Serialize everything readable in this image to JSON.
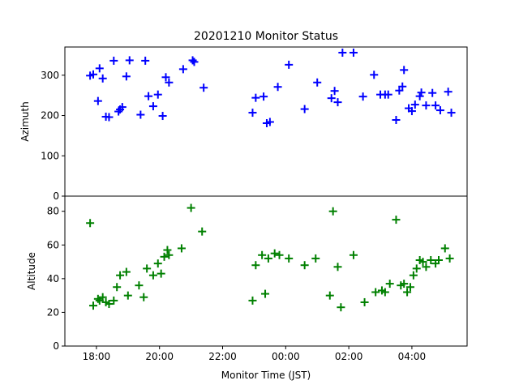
{
  "chart_data": {
    "title": "20201210 Monitor Status",
    "xlabel": "Monitor Time (JST)",
    "x_ticks": [
      "18:00",
      "20:00",
      "22:00",
      "00:00",
      "02:00",
      "04:00"
    ],
    "x_tick_hours": [
      18,
      20,
      22,
      24,
      26,
      28
    ],
    "xlim_hours": [
      17.0,
      29.75
    ],
    "marker": "plus",
    "panels": [
      {
        "type": "scatter",
        "ylabel": "Azimuth",
        "ylim": [
          0,
          370
        ],
        "y_ticks": [
          0,
          100,
          200,
          300
        ],
        "color": "#0000ff",
        "points": [
          [
            17.8,
            299
          ],
          [
            17.9,
            302
          ],
          [
            18.05,
            236
          ],
          [
            18.1,
            317
          ],
          [
            18.2,
            292
          ],
          [
            18.3,
            197
          ],
          [
            18.4,
            196
          ],
          [
            18.55,
            336
          ],
          [
            18.7,
            210
          ],
          [
            18.75,
            215
          ],
          [
            18.82,
            221
          ],
          [
            18.95,
            297
          ],
          [
            19.05,
            337
          ],
          [
            19.4,
            202
          ],
          [
            19.55,
            336
          ],
          [
            19.65,
            248
          ],
          [
            19.8,
            223
          ],
          [
            19.95,
            252
          ],
          [
            20.1,
            199
          ],
          [
            20.2,
            295
          ],
          [
            20.3,
            282
          ],
          [
            20.75,
            315
          ],
          [
            21.05,
            337
          ],
          [
            21.1,
            333
          ],
          [
            21.4,
            269
          ],
          [
            22.95,
            207
          ],
          [
            23.05,
            244
          ],
          [
            23.3,
            247
          ],
          [
            23.4,
            181
          ],
          [
            23.5,
            184
          ],
          [
            23.75,
            271
          ],
          [
            24.1,
            326
          ],
          [
            24.6,
            216
          ],
          [
            25.0,
            282
          ],
          [
            25.45,
            243
          ],
          [
            25.55,
            261
          ],
          [
            25.65,
            233
          ],
          [
            25.8,
            356
          ],
          [
            26.15,
            356
          ],
          [
            26.45,
            247
          ],
          [
            26.8,
            301
          ],
          [
            27.0,
            252
          ],
          [
            27.15,
            252
          ],
          [
            27.25,
            252
          ],
          [
            27.5,
            189
          ],
          [
            27.6,
            262
          ],
          [
            27.7,
            272
          ],
          [
            27.75,
            313
          ],
          [
            27.9,
            218
          ],
          [
            28.0,
            211
          ],
          [
            28.1,
            227
          ],
          [
            28.3,
            257
          ],
          [
            28.25,
            248
          ],
          [
            28.45,
            225
          ],
          [
            28.65,
            256
          ],
          [
            28.75,
            225
          ],
          [
            28.9,
            213
          ],
          [
            29.15,
            259
          ],
          [
            29.25,
            207
          ]
        ]
      },
      {
        "type": "scatter",
        "ylabel": "Altitude",
        "ylim": [
          0,
          89
        ],
        "y_ticks": [
          0,
          20,
          40,
          60,
          80
        ],
        "color": "#008000",
        "points": [
          [
            17.8,
            73
          ],
          [
            17.9,
            24
          ],
          [
            18.05,
            28
          ],
          [
            18.1,
            27
          ],
          [
            18.2,
            29
          ],
          [
            18.3,
            26
          ],
          [
            18.4,
            25
          ],
          [
            18.55,
            27
          ],
          [
            18.65,
            35
          ],
          [
            18.75,
            42
          ],
          [
            18.95,
            44
          ],
          [
            19.0,
            30
          ],
          [
            19.35,
            36
          ],
          [
            19.5,
            29
          ],
          [
            19.6,
            46
          ],
          [
            19.8,
            42
          ],
          [
            19.95,
            49
          ],
          [
            20.05,
            43
          ],
          [
            20.15,
            53
          ],
          [
            20.25,
            57
          ],
          [
            20.3,
            54
          ],
          [
            20.7,
            58
          ],
          [
            21.0,
            82
          ],
          [
            21.35,
            68
          ],
          [
            22.95,
            27
          ],
          [
            23.05,
            48
          ],
          [
            23.25,
            54
          ],
          [
            23.35,
            31
          ],
          [
            23.45,
            52
          ],
          [
            23.65,
            55
          ],
          [
            23.8,
            54
          ],
          [
            24.1,
            52
          ],
          [
            24.6,
            48
          ],
          [
            24.95,
            52
          ],
          [
            25.4,
            30
          ],
          [
            25.5,
            80
          ],
          [
            25.65,
            47
          ],
          [
            25.75,
            23
          ],
          [
            26.15,
            54
          ],
          [
            26.5,
            26
          ],
          [
            26.85,
            32
          ],
          [
            27.05,
            33
          ],
          [
            27.15,
            32
          ],
          [
            27.3,
            37
          ],
          [
            27.5,
            75
          ],
          [
            27.65,
            36
          ],
          [
            27.75,
            37
          ],
          [
            27.85,
            32
          ],
          [
            27.95,
            35
          ],
          [
            28.05,
            42
          ],
          [
            28.15,
            46
          ],
          [
            28.25,
            51
          ],
          [
            28.35,
            50
          ],
          [
            28.45,
            47
          ],
          [
            28.6,
            51
          ],
          [
            28.75,
            49
          ],
          [
            28.85,
            51
          ],
          [
            29.05,
            58
          ],
          [
            29.2,
            52
          ]
        ]
      }
    ]
  }
}
